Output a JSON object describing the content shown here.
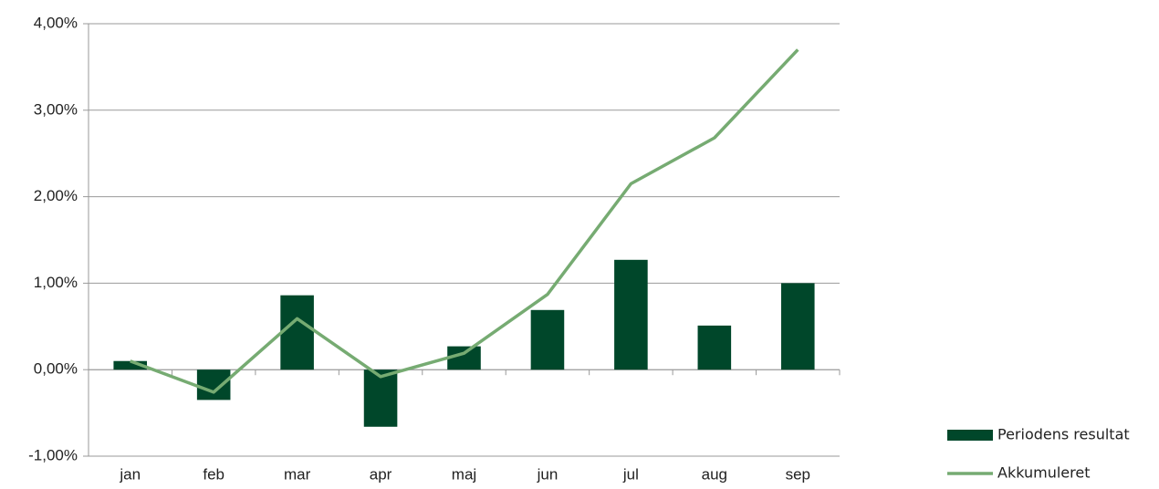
{
  "chart_data": {
    "type": "bar",
    "categories": [
      "jan",
      "feb",
      "mar",
      "apr",
      "maj",
      "jun",
      "jul",
      "aug",
      "sep"
    ],
    "series": [
      {
        "name": "Periodens resultat",
        "type": "bar",
        "color": "#00472a",
        "values": [
          0.1,
          -0.35,
          0.86,
          -0.66,
          0.27,
          0.69,
          1.27,
          0.51,
          1.0
        ]
      },
      {
        "name": "Akkumuleret",
        "type": "line",
        "color": "#76ab72",
        "values": [
          0.1,
          -0.26,
          0.59,
          -0.08,
          0.19,
          0.87,
          2.15,
          2.68,
          3.7
        ]
      }
    ],
    "ylim": [
      -1,
      4
    ],
    "yticks": [
      {
        "value": -1,
        "label": "-1,00%"
      },
      {
        "value": 0,
        "label": "0,00%"
      },
      {
        "value": 1,
        "label": "1,00%"
      },
      {
        "value": 2,
        "label": "2,00%"
      },
      {
        "value": 3,
        "label": "3,00%"
      },
      {
        "value": 4,
        "label": "4,00%"
      }
    ],
    "grid": true,
    "legend": "lower right"
  }
}
